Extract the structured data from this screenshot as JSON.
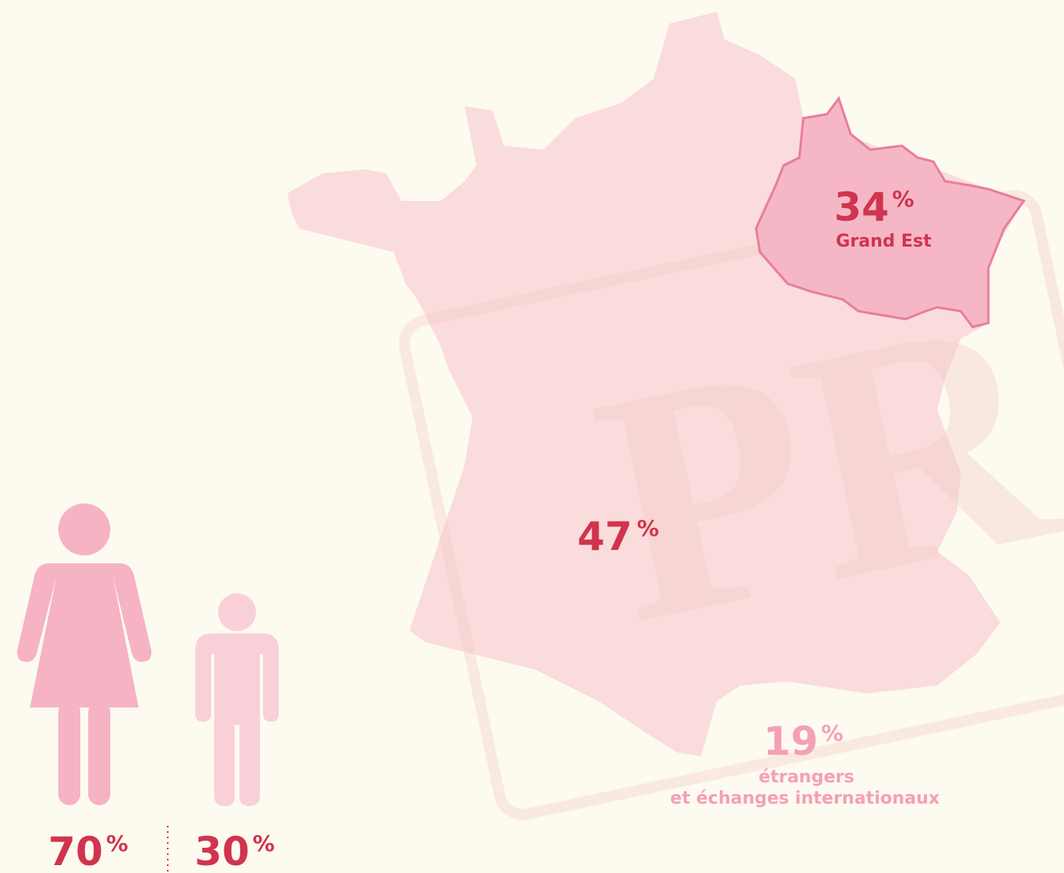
{
  "watermark": "PR",
  "regions": [
    {
      "value": 34,
      "unit": "%",
      "label": "Grand Est"
    },
    {
      "value": 47,
      "unit": "%"
    },
    {
      "value": 19,
      "unit": "%",
      "label_lines": [
        "étrangers",
        "et échanges internationaux"
      ]
    }
  ],
  "gender": [
    {
      "value": 70,
      "unit": "%"
    },
    {
      "value": 30,
      "unit": "%"
    }
  ]
}
